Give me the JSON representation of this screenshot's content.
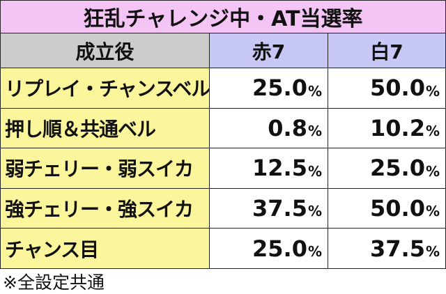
{
  "table": {
    "title": "狂乱チャレンジ中・AT当選率",
    "header": [
      "成立役",
      "赤7",
      "白7"
    ],
    "rows": [
      {
        "label": "リプレイ・チャンスベル",
        "cells": [
          {
            "number": "25.0",
            "unit": "%"
          },
          {
            "number": "50.0",
            "unit": "%"
          }
        ]
      },
      {
        "label": "押し順＆共通ベル",
        "cells": [
          {
            "number": "0.8",
            "unit": "%"
          },
          {
            "number": "10.2",
            "unit": "%"
          }
        ]
      },
      {
        "label": "弱チェリー・弱スイカ",
        "cells": [
          {
            "number": "12.5",
            "unit": "%"
          },
          {
            "number": "25.0",
            "unit": "%"
          }
        ]
      },
      {
        "label": "強チェリー・強スイカ",
        "cells": [
          {
            "number": "37.5",
            "unit": "%"
          },
          {
            "number": "50.0",
            "unit": "%"
          }
        ]
      },
      {
        "label": "チャンス目",
        "cells": [
          {
            "number": "25.0",
            "unit": "%"
          },
          {
            "number": "37.5",
            "unit": "%"
          }
        ]
      }
    ],
    "note": "※全設定共通"
  }
}
